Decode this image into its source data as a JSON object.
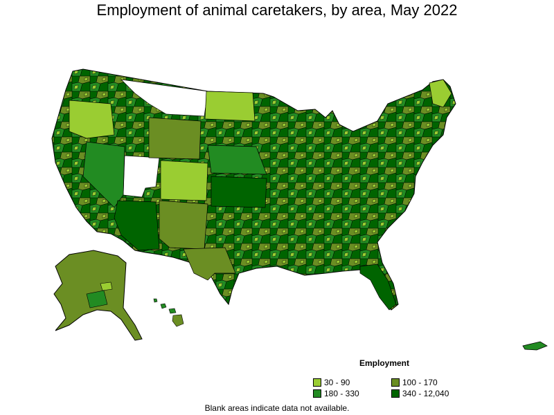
{
  "title": "Employment of animal caretakers, by area, May 2022",
  "legend": {
    "title": "Employment",
    "items": [
      {
        "label": "30 - 90",
        "color": "#9acd32"
      },
      {
        "label": "100 - 170",
        "color": "#6b8e23"
      },
      {
        "label": "180 - 330",
        "color": "#228b22"
      },
      {
        "label": "340 - 12,040",
        "color": "#006400"
      }
    ]
  },
  "footnote": "Blank areas indicate data not available.",
  "colors": {
    "no_data": "#ffffff",
    "border": "#000000"
  }
}
